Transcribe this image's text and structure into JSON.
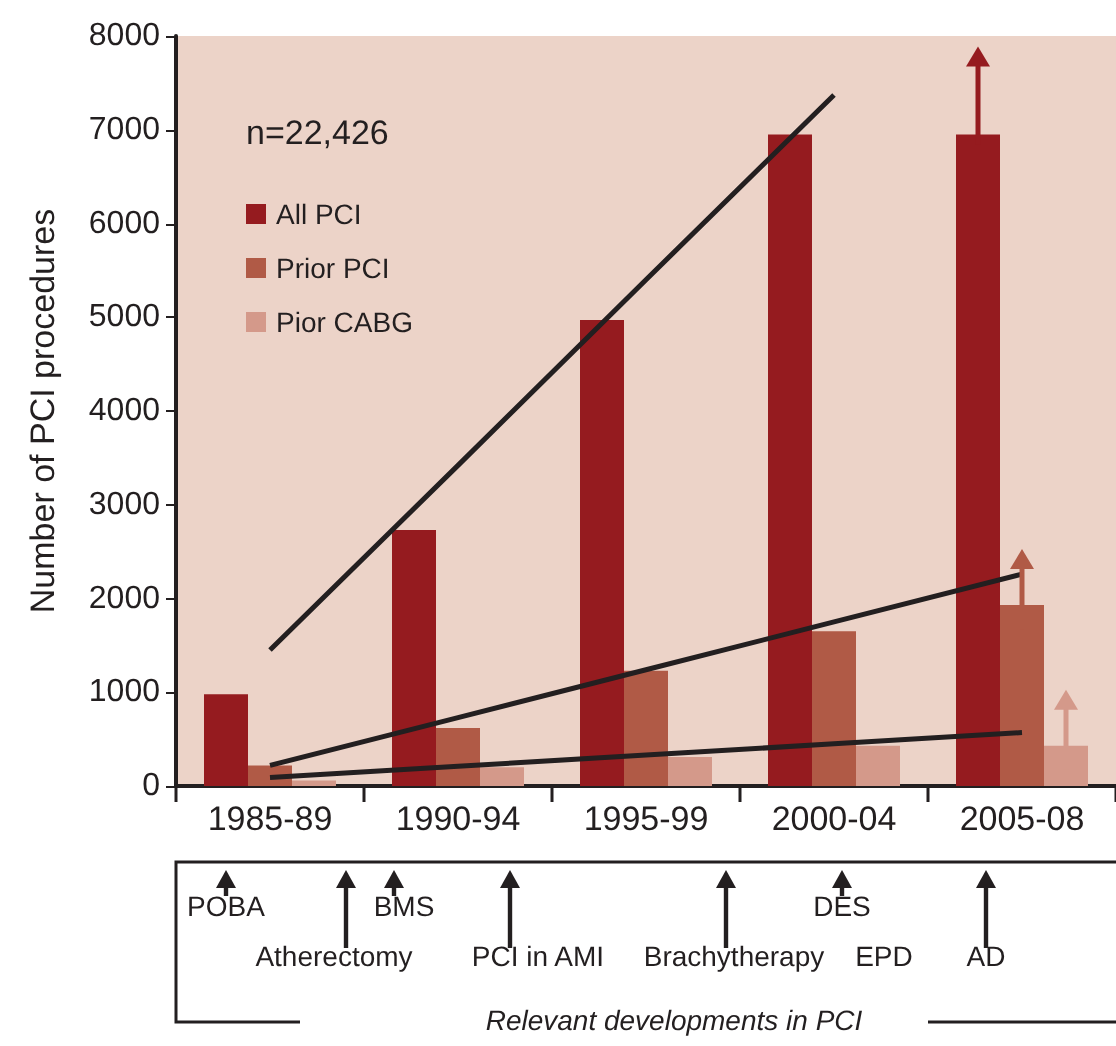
{
  "chart_data": {
    "type": "bar",
    "ylabel": "Number of PCI procedures",
    "categories": [
      "1985-89",
      "1990-94",
      "1995-99",
      "2000-04",
      "2005-08"
    ],
    "series": [
      {
        "name": "All PCI",
        "color": "#951b1f",
        "values": [
          980,
          2730,
          4970,
          6950,
          6950
        ]
      },
      {
        "name": "Prior PCI",
        "color": "#b05a46",
        "values": [
          220,
          620,
          1230,
          1650,
          1930
        ]
      },
      {
        "name": "Pior CABG",
        "color": "#d4998a",
        "values": [
          60,
          200,
          310,
          430,
          430
        ]
      },
      {
        "type": "line",
        "color": "#231f20",
        "values": [
          1450,
          3420,
          5400,
          7370,
          null
        ]
      },
      {
        "type": "line",
        "color": "#231f20",
        "values": [
          220,
          730,
          1240,
          1750,
          2260
        ]
      },
      {
        "type": "line",
        "color": "#231f20",
        "values": [
          90,
          210,
          330,
          450,
          570
        ]
      }
    ],
    "ylim": [
      0,
      8000
    ],
    "yticks": [
      0,
      1000,
      2000,
      3000,
      4000,
      5000,
      6000,
      7000,
      8000
    ],
    "grid": false,
    "legend": "top left",
    "marker": "none",
    "line_style": "solid",
    "annotations": [
      "n=22,426",
      "POBA",
      "Atherectomy",
      "BMS",
      "PCI in AMI",
      "Brachytherapy",
      "EPD",
      "DES",
      "AD",
      "Relevant developments in PCI"
    ]
  }
}
